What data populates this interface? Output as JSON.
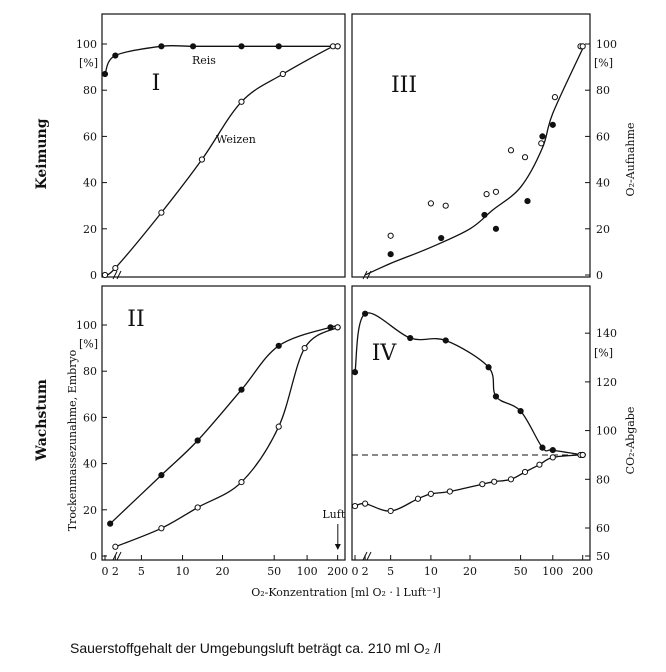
{
  "caption": "Sauerstoffgehalt der Umgebungsluft beträgt ca. 210 ml O₂ /l",
  "chart_data": {
    "type": "line",
    "x_axis": {
      "label": "O₂-Konzentration  [ml O₂ · l Luft⁻¹]",
      "ticks": [
        "0",
        "2",
        "5",
        "10",
        "20",
        "50",
        "100",
        "200"
      ],
      "annotation": "Luft",
      "annotation_x": 210
    },
    "row_labels": [
      "Keimung",
      "Wachstum"
    ],
    "panels": [
      {
        "id": "I",
        "roman": "I",
        "position": "top-left",
        "ylabel": "",
        "unit": "[%]",
        "yticks": [
          "0",
          "20",
          "40",
          "60",
          "80",
          "100"
        ],
        "ylim": [
          0,
          100
        ],
        "series": [
          {
            "name": "Reis",
            "marker": "filled",
            "points": [
              [
                0,
                87
              ],
              [
                2,
                95
              ],
              [
                7,
                99
              ],
              [
                12,
                99
              ],
              [
                28,
                99
              ],
              [
                55,
                99
              ],
              [
                200,
                99
              ]
            ]
          },
          {
            "name": "Weizen",
            "marker": "open",
            "points": [
              [
                0,
                0
              ],
              [
                2,
                3
              ],
              [
                7,
                27
              ],
              [
                14,
                50
              ],
              [
                28,
                75
              ],
              [
                60,
                87
              ],
              [
                180,
                99
              ],
              [
                200,
                99
              ]
            ]
          }
        ]
      },
      {
        "id": "III",
        "roman": "III",
        "position": "top-right",
        "ylabel": "O₂-Aufnahme",
        "unit": "[%]",
        "yticks": [
          "0",
          "20",
          "40",
          "60",
          "80",
          "100"
        ],
        "ylim": [
          0,
          100
        ],
        "series": [
          {
            "name": "",
            "marker": "curve",
            "points": [
              [
                2,
                0
              ],
              [
                5,
                5
              ],
              [
                10,
                12
              ],
              [
                20,
                20
              ],
              [
                30,
                28
              ],
              [
                50,
                38
              ],
              [
                80,
                55
              ],
              [
                100,
                70
              ],
              [
                200,
                98
              ]
            ]
          },
          {
            "name": "",
            "marker": "open",
            "points": [
              [
                5,
                17
              ],
              [
                10,
                31
              ],
              [
                13,
                30
              ],
              [
                27,
                35
              ],
              [
                32,
                36
              ],
              [
                42,
                54
              ],
              [
                55,
                51
              ],
              [
                78,
                57
              ],
              [
                105,
                77
              ],
              [
                190,
                99
              ],
              [
                200,
                99
              ]
            ]
          },
          {
            "name": "",
            "marker": "filled",
            "points": [
              [
                5,
                9
              ],
              [
                12,
                16
              ],
              [
                26,
                26
              ],
              [
                32,
                20
              ],
              [
                58,
                32
              ],
              [
                80,
                60
              ],
              [
                100,
                65
              ]
            ]
          }
        ]
      },
      {
        "id": "II",
        "roman": "II",
        "position": "bottom-left",
        "ylabel": "Trockenmassezunahme, Embryo",
        "unit": "[%]",
        "yticks": [
          "0",
          "20",
          "40",
          "60",
          "80",
          "100"
        ],
        "ylim": [
          0,
          100
        ],
        "series": [
          {
            "name": "",
            "marker": "filled",
            "points": [
              [
                1,
                14
              ],
              [
                7,
                35
              ],
              [
                13,
                50
              ],
              [
                28,
                72
              ],
              [
                55,
                91
              ],
              [
                170,
                99
              ],
              [
                200,
                99
              ]
            ]
          },
          {
            "name": "",
            "marker": "open",
            "points": [
              [
                2,
                4
              ],
              [
                7,
                12
              ],
              [
                13,
                21
              ],
              [
                28,
                32
              ],
              [
                55,
                56
              ],
              [
                95,
                90
              ],
              [
                200,
                99
              ]
            ]
          }
        ]
      },
      {
        "id": "IV",
        "roman": "IV",
        "position": "bottom-right",
        "ylabel": "CO₂-Abgabe",
        "unit": "[%]",
        "yticks": [
          "50",
          "60",
          "80",
          "100",
          "120",
          "140"
        ],
        "ylim": [
          50,
          150
        ],
        "reference_line": 90,
        "series": [
          {
            "name": "",
            "marker": "filled",
            "points": [
              [
                0,
                124
              ],
              [
                2,
                148
              ],
              [
                7,
                138
              ],
              [
                13,
                137
              ],
              [
                28,
                126
              ],
              [
                32,
                114
              ],
              [
                50,
                108
              ],
              [
                80,
                93
              ],
              [
                100,
                92
              ],
              [
                200,
                90
              ]
            ]
          },
          {
            "name": "",
            "marker": "open",
            "points": [
              [
                0,
                69
              ],
              [
                2,
                70
              ],
              [
                5,
                67
              ],
              [
                8,
                72
              ],
              [
                10,
                74
              ],
              [
                14,
                75
              ],
              [
                25,
                78
              ],
              [
                31,
                79
              ],
              [
                42,
                80
              ],
              [
                55,
                83
              ],
              [
                75,
                86
              ],
              [
                100,
                89
              ],
              [
                190,
                90
              ],
              [
                200,
                90
              ]
            ]
          }
        ]
      }
    ]
  }
}
